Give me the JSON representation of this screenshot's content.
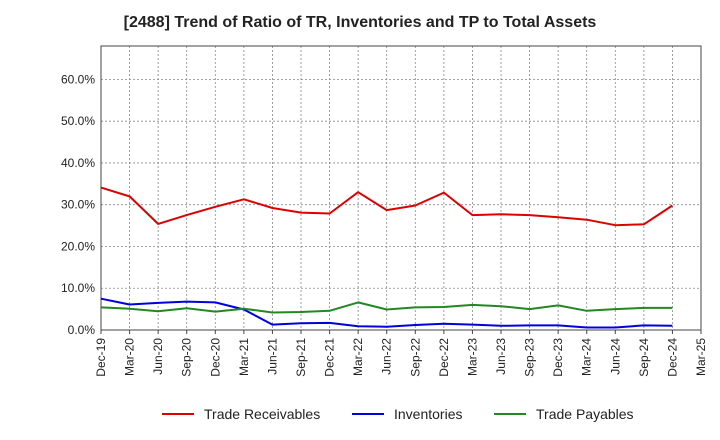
{
  "chart_data": {
    "type": "line",
    "title": "[2488]  Trend of Ratio of TR, Inventories and TP to Total Assets",
    "xlabel": "",
    "ylabel": "",
    "ylim": [
      0,
      0.68
    ],
    "yticks": [
      0,
      0.1,
      0.2,
      0.3,
      0.4,
      0.5,
      0.6
    ],
    "ytick_labels": [
      "0.0%",
      "10.0%",
      "20.0%",
      "30.0%",
      "40.0%",
      "50.0%",
      "60.0%"
    ],
    "x_tick_labels": [
      "Dec-19",
      "Mar-20",
      "Jun-20",
      "Sep-20",
      "Dec-20",
      "Mar-21",
      "Jun-21",
      "Sep-21",
      "Dec-21",
      "Mar-22",
      "Jun-22",
      "Sep-22",
      "Dec-22",
      "Mar-23",
      "Jun-23",
      "Sep-23",
      "Dec-23",
      "Mar-24",
      "Jun-24",
      "Sep-24",
      "Dec-24",
      "Mar-25"
    ],
    "categories": [
      "Dec-19",
      "Mar-20",
      "Jun-20",
      "Sep-20",
      "Dec-20",
      "Mar-21",
      "Jun-21",
      "Sep-21",
      "Dec-21",
      "Mar-22",
      "Jun-22",
      "Sep-22",
      "Dec-22",
      "Mar-23",
      "Jun-23",
      "Sep-23",
      "Dec-23",
      "Mar-24",
      "Jun-24",
      "Sep-24",
      "Dec-24"
    ],
    "grid": true,
    "legend_position": "bottom",
    "series": [
      {
        "name": "Trade Receivables",
        "color": "#dd0000",
        "values": [
          0.341,
          0.32,
          0.254,
          0.275,
          0.295,
          0.313,
          0.292,
          0.281,
          0.279,
          0.33,
          0.287,
          0.298,
          0.329,
          0.275,
          0.277,
          0.275,
          0.27,
          0.264,
          0.251,
          0.253,
          0.298
        ]
      },
      {
        "name": "Inventories",
        "color": "#0000dd",
        "values": [
          0.075,
          0.061,
          0.065,
          0.068,
          0.066,
          0.049,
          0.013,
          0.016,
          0.017,
          0.009,
          0.008,
          0.012,
          0.015,
          0.013,
          0.01,
          0.011,
          0.011,
          0.006,
          0.006,
          0.011,
          0.01
        ]
      },
      {
        "name": "Trade Payables",
        "color": "#228822",
        "values": [
          0.054,
          0.051,
          0.045,
          0.052,
          0.044,
          0.051,
          0.042,
          0.043,
          0.046,
          0.066,
          0.049,
          0.054,
          0.055,
          0.06,
          0.057,
          0.05,
          0.059,
          0.046,
          0.05,
          0.053,
          0.053
        ]
      }
    ]
  }
}
